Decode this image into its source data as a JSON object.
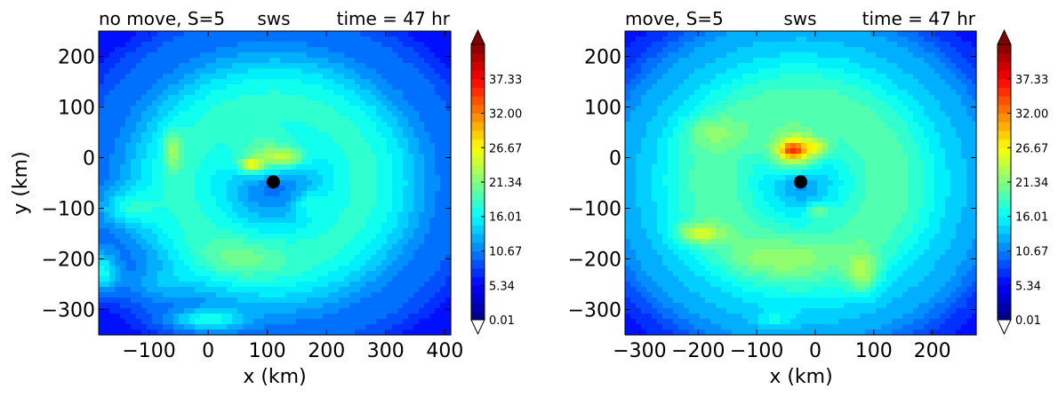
{
  "colors": {
    "title_left": "#ff0000",
    "title_center": "#000000",
    "title_right": "#0000ff",
    "marker": "#000000",
    "colormap": "jet"
  },
  "chart_data": [
    {
      "type": "heatmap",
      "plot_kind": "filled-contour",
      "title_left": "no move, S=5",
      "title_center": "sws",
      "title_right": "time = 47 hr",
      "xlabel": "x (km)",
      "ylabel": "y (km)",
      "xlim": [
        -185,
        410
      ],
      "ylim": [
        -350,
        250
      ],
      "xticks": [
        -100,
        0,
        100,
        200,
        300,
        400
      ],
      "xtick_labels": [
        "−100",
        "0",
        "100",
        "200",
        "300",
        "400"
      ],
      "yticks": [
        200,
        100,
        0,
        -100,
        -200,
        -300
      ],
      "ytick_labels": [
        "200",
        "100",
        "0",
        "−100",
        "−200",
        "−300"
      ],
      "center_marker": {
        "x": 110,
        "y": -48
      },
      "colorbar": {
        "min": 0.01,
        "max": 42.67,
        "levels": 32,
        "extend": "both",
        "tick_values": [
          0.01,
          5.34,
          10.67,
          16.01,
          21.34,
          26.67,
          32.0,
          37.33
        ],
        "tick_labels": [
          "0.01",
          "5.34",
          "10.67",
          "16.01",
          "21.34",
          "26.67",
          "32.00",
          "37.33"
        ]
      },
      "field": {
        "background": 5.2,
        "rings": [
          {
            "cx": 110,
            "cy": -48,
            "r": 155,
            "w": 130,
            "amp": 12.5
          },
          {
            "cx": 110,
            "cy": -48,
            "r": 330,
            "w": 40,
            "amp": 2.0
          }
        ],
        "blobs": [
          {
            "x": 100,
            "y": 0,
            "sx": 55,
            "sy": 45,
            "amp": 8
          },
          {
            "x": 72,
            "y": -15,
            "sx": 20,
            "sy": 14,
            "amp": 9
          },
          {
            "x": 130,
            "y": 0,
            "sx": 35,
            "sy": 18,
            "amp": 6
          },
          {
            "x": -60,
            "y": 15,
            "sx": 15,
            "sy": 40,
            "amp": 6
          },
          {
            "x": -140,
            "y": -100,
            "sx": 45,
            "sy": 35,
            "amp": 5
          },
          {
            "x": -180,
            "y": -230,
            "sx": 25,
            "sy": 40,
            "amp": 8
          },
          {
            "x": 0,
            "y": -320,
            "sx": 60,
            "sy": 20,
            "amp": 7
          },
          {
            "x": -80,
            "y": -250,
            "sx": 50,
            "sy": 30,
            "amp": 3
          },
          {
            "x": 170,
            "y": -90,
            "sx": 30,
            "sy": 25,
            "amp": 3
          },
          {
            "x": 50,
            "y": -200,
            "sx": 80,
            "sy": 40,
            "amp": 3
          }
        ]
      }
    },
    {
      "type": "heatmap",
      "plot_kind": "filled-contour",
      "title_left": "move, S=5",
      "title_center": "sws",
      "title_right": "time = 47 hr",
      "xlabel": "x (km)",
      "ylabel": "",
      "xlim": [
        -325,
        275
      ],
      "ylim": [
        -350,
        250
      ],
      "xticks": [
        -300,
        -200,
        -100,
        0,
        100,
        200
      ],
      "xtick_labels": [
        "−300",
        "−200",
        "−100",
        "0",
        "100",
        "200"
      ],
      "yticks": [
        200,
        100,
        0,
        -100,
        -200,
        -300
      ],
      "ytick_labels": [
        "200",
        "100",
        "0",
        "−100",
        "−200",
        "−300"
      ],
      "center_marker": {
        "x": -25,
        "y": -48
      },
      "colorbar": {
        "min": 0.01,
        "max": 42.67,
        "levels": 32,
        "extend": "both",
        "tick_values": [
          0.01,
          5.34,
          10.67,
          16.01,
          21.34,
          26.67,
          32.0,
          37.33
        ],
        "tick_labels": [
          "0.01",
          "5.34",
          "10.67",
          "16.01",
          "21.34",
          "26.67",
          "32.00",
          "37.33"
        ]
      },
      "field": {
        "background": 5.5,
        "rings": [
          {
            "cx": -25,
            "cy": -48,
            "r": 150,
            "w": 150,
            "amp": 14
          },
          {
            "cx": -25,
            "cy": -48,
            "r": 320,
            "w": 50,
            "amp": 2.5
          }
        ],
        "blobs": [
          {
            "x": -35,
            "y": 10,
            "sx": 40,
            "sy": 38,
            "amp": 12
          },
          {
            "x": -40,
            "y": 15,
            "sx": 18,
            "sy": 14,
            "amp": 8
          },
          {
            "x": 0,
            "y": 20,
            "sx": 25,
            "sy": 15,
            "amp": 5
          },
          {
            "x": -200,
            "y": -150,
            "sx": 40,
            "sy": 20,
            "amp": 7
          },
          {
            "x": 5,
            "y": -105,
            "sx": 20,
            "sy": 15,
            "amp": 5
          },
          {
            "x": 80,
            "y": -230,
            "sx": 25,
            "sy": 40,
            "amp": 6
          },
          {
            "x": -60,
            "y": -200,
            "sx": 90,
            "sy": 35,
            "amp": 3
          },
          {
            "x": -180,
            "y": 50,
            "sx": 50,
            "sy": 30,
            "amp": 3
          },
          {
            "x": -70,
            "y": -320,
            "sx": 30,
            "sy": 15,
            "amp": 3
          }
        ]
      }
    }
  ]
}
